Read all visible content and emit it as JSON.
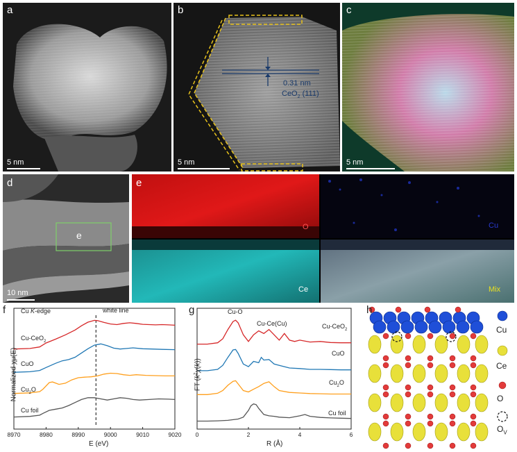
{
  "panels": {
    "a": {
      "label": "a",
      "scalebar": "5 nm"
    },
    "b": {
      "label": "b",
      "scalebar": "5 nm",
      "annotation_spacing": "0.31 nm",
      "annotation_plane": "CeO",
      "annotation_sub": "2",
      "annotation_hkl": " (111)"
    },
    "c": {
      "label": "c",
      "scalebar": "5 nm"
    },
    "d": {
      "label": "d",
      "scalebar": "10 nm",
      "box_label": "e"
    },
    "e": {
      "label": "e",
      "maps": {
        "o": "O",
        "cu": "Cu",
        "ce": "Ce",
        "mix": "Mix"
      }
    },
    "f": {
      "label": "f"
    },
    "g": {
      "label": "g"
    },
    "h": {
      "label": "h"
    }
  },
  "legend_h": [
    {
      "label": "Cu",
      "color": "#1f4fd8"
    },
    {
      "label": "Ce",
      "color": "#e8e03a"
    },
    {
      "label": "O",
      "color": "#e23b3b"
    },
    {
      "label": "O",
      "sub": "V",
      "color": "none"
    }
  ],
  "colors": {
    "cuceo2": "#d62728",
    "cuo": "#1f77b4",
    "cu2o": "#ff9f1c",
    "cufoil": "#555555"
  },
  "chart_data": [
    {
      "type": "line",
      "panel": "f",
      "title": "Cu K-edge",
      "xlabel": "E (eV)",
      "ylabel": "Normalized χμ(E)",
      "xlim": [
        8970,
        9020
      ],
      "xticks": [
        "8970",
        "8980",
        "8990",
        "9000",
        "9010",
        "9020"
      ],
      "annotation": "white line",
      "annotation_x": 8995.5,
      "series": [
        {
          "name": "Cu-CeO2",
          "color": "#d62728",
          "x": [
            8970,
            8975,
            8978,
            8980,
            8983,
            8986,
            8989,
            8991,
            8993,
            8995,
            8996,
            8998,
            9000,
            9002,
            9004,
            9006,
            9008,
            9010,
            9012,
            9014,
            9016,
            9018,
            9020
          ],
          "y": [
            3.05,
            3.07,
            3.12,
            3.25,
            3.38,
            3.52,
            3.68,
            3.82,
            3.94,
            4.0,
            3.99,
            3.93,
            3.88,
            3.86,
            3.9,
            3.92,
            3.9,
            3.87,
            3.86,
            3.85,
            3.86,
            3.85,
            3.84
          ]
        },
        {
          "name": "CuO",
          "color": "#1f77b4",
          "x": [
            8970,
            8975,
            8978,
            8980,
            8983,
            8985,
            8987,
            8989,
            8991,
            8993,
            8995,
            8997,
            8999,
            9001,
            9003,
            9005,
            9007,
            9010,
            9013,
            9016,
            9020
          ],
          "y": [
            2.28,
            2.3,
            2.34,
            2.44,
            2.58,
            2.66,
            2.7,
            2.78,
            2.92,
            3.06,
            3.18,
            3.22,
            3.16,
            3.08,
            3.05,
            3.07,
            3.09,
            3.06,
            3.05,
            3.04,
            3.03
          ]
        },
        {
          "name": "Cu2O",
          "color": "#ff9f1c",
          "x": [
            8970,
            8975,
            8978,
            8979,
            8981,
            8982,
            8984,
            8986,
            8988,
            8990,
            8992,
            8994,
            8996,
            8998,
            9000,
            9002,
            9004,
            9006,
            9008,
            9011,
            9014,
            9017,
            9020
          ],
          "y": [
            1.58,
            1.6,
            1.64,
            1.72,
            1.94,
            1.96,
            1.88,
            1.92,
            2.03,
            2.1,
            2.12,
            2.13,
            2.16,
            2.22,
            2.25,
            2.24,
            2.2,
            2.18,
            2.2,
            2.18,
            2.17,
            2.16,
            2.16
          ]
        },
        {
          "name": "Cu foil",
          "color": "#555555",
          "x": [
            8970,
            8975,
            8978,
            8979,
            8981,
            8983,
            8985,
            8987,
            8989,
            8991,
            8993,
            8995,
            8997,
            8999,
            9001,
            9003,
            9005,
            9007,
            9009,
            9012,
            9015,
            9018,
            9020
          ],
          "y": [
            0.8,
            0.82,
            0.86,
            0.92,
            1.02,
            1.06,
            1.1,
            1.18,
            1.28,
            1.38,
            1.44,
            1.44,
            1.4,
            1.36,
            1.4,
            1.44,
            1.42,
            1.38,
            1.36,
            1.38,
            1.4,
            1.39,
            1.38
          ]
        }
      ],
      "labels": [
        "Cu-CeO",
        "CuO",
        "Cu",
        "Cu foil"
      ]
    },
    {
      "type": "line",
      "panel": "g",
      "xlabel": "R (Å)",
      "ylabel": "FT (k²χ(k))",
      "xlim": [
        0,
        6
      ],
      "xticks": [
        "0",
        "2",
        "4",
        "6"
      ],
      "peak_labels": [
        "Cu-O",
        "Cu-Ce(Cu)"
      ],
      "series": [
        {
          "name": "Cu-CeO2",
          "color": "#d62728",
          "x": [
            0,
            0.4,
            0.8,
            1.0,
            1.2,
            1.4,
            1.5,
            1.6,
            1.8,
            2.0,
            2.2,
            2.4,
            2.6,
            2.8,
            3.0,
            3.2,
            3.4,
            3.6,
            3.8,
            4.0,
            4.4,
            4.8,
            5.2,
            5.6,
            6.0
          ],
          "y": [
            3.2,
            3.2,
            3.25,
            3.4,
            3.75,
            4.05,
            4.1,
            4.0,
            3.55,
            3.3,
            3.55,
            3.7,
            3.6,
            3.75,
            3.55,
            3.35,
            3.6,
            3.35,
            3.3,
            3.35,
            3.28,
            3.3,
            3.26,
            3.25,
            3.25
          ]
        },
        {
          "name": "CuO",
          "color": "#1f77b4",
          "x": [
            0,
            0.4,
            0.8,
            1.0,
            1.2,
            1.4,
            1.5,
            1.6,
            1.8,
            2.0,
            2.2,
            2.4,
            2.5,
            2.6,
            2.8,
            3.0,
            3.2,
            3.4,
            3.6,
            4.0,
            4.4,
            4.8,
            5.2,
            5.6,
            6.0
          ],
          "y": [
            2.2,
            2.2,
            2.25,
            2.4,
            2.7,
            2.98,
            3.0,
            2.85,
            2.45,
            2.35,
            2.55,
            2.5,
            2.7,
            2.6,
            2.62,
            2.45,
            2.4,
            2.35,
            2.3,
            2.28,
            2.25,
            2.25,
            2.24,
            2.23,
            2.23
          ]
        },
        {
          "name": "Cu2O",
          "color": "#ff9f1c",
          "x": [
            0,
            0.4,
            0.8,
            1.0,
            1.2,
            1.4,
            1.5,
            1.6,
            1.8,
            2.0,
            2.2,
            2.4,
            2.6,
            2.8,
            3.0,
            3.2,
            3.6,
            4.0,
            4.4,
            4.8,
            5.2,
            5.6,
            6.0
          ],
          "y": [
            1.3,
            1.3,
            1.35,
            1.45,
            1.65,
            1.8,
            1.82,
            1.7,
            1.45,
            1.4,
            1.5,
            1.6,
            1.72,
            1.78,
            1.6,
            1.45,
            1.38,
            1.36,
            1.34,
            1.33,
            1.32,
            1.32,
            1.32
          ]
        },
        {
          "name": "Cu foil",
          "color": "#555555",
          "x": [
            0,
            0.4,
            0.8,
            1.2,
            1.6,
            1.8,
            2.0,
            2.1,
            2.2,
            2.3,
            2.4,
            2.6,
            2.8,
            3.0,
            3.2,
            3.6,
            4.0,
            4.2,
            4.4,
            4.8,
            5.2,
            5.6,
            6.0
          ],
          "y": [
            0.3,
            0.3,
            0.31,
            0.33,
            0.38,
            0.45,
            0.7,
            0.88,
            0.95,
            0.92,
            0.78,
            0.55,
            0.5,
            0.48,
            0.45,
            0.43,
            0.5,
            0.55,
            0.48,
            0.44,
            0.42,
            0.41,
            0.4
          ]
        }
      ],
      "labels": [
        "Cu-CeO",
        "CuO",
        "Cu",
        "Cu foil"
      ]
    }
  ]
}
